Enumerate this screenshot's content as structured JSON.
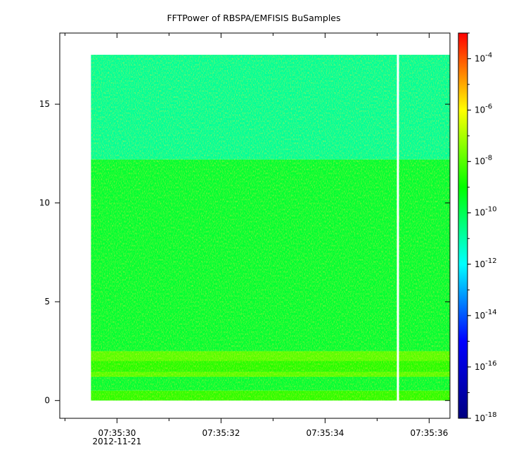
{
  "chart_data": {
    "type": "heatmap",
    "title": "FFTPower of RBSPA/EMFISIS  BuSamples",
    "xlabel": "",
    "ylabel": "",
    "x_start": "07:35:29.5",
    "x_end": "07:35:36.4",
    "xlim": [
      "07:35:28.9",
      "07:35:36.4"
    ],
    "x_ticks": [
      "07:35:30",
      "07:35:32",
      "07:35:34",
      "07:35:36"
    ],
    "x_minor_ticks": [
      "07:35:29",
      "07:35:31",
      "07:35:33",
      "07:35:35"
    ],
    "x_date_label": "2012-11-21",
    "ylim": [
      -0.9,
      18.6
    ],
    "y_ticks": [
      0,
      5,
      10,
      15
    ],
    "data_y_max": 17.5,
    "data_gap_time": "07:35:35.4",
    "colorbar": {
      "scale": "log",
      "range": [
        1e-18,
        0.001
      ],
      "tick_values": [
        1e-18,
        1e-16,
        1e-14,
        1e-12,
        1e-10,
        1e-08,
        1e-06,
        0.0001
      ],
      "tick_bases": [
        "10",
        "10",
        "10",
        "10",
        "10",
        "10",
        "10",
        "10"
      ],
      "tick_exponents": [
        "-18",
        "-16",
        "-14",
        "-12",
        "-10",
        "-8",
        "-6",
        "-4"
      ],
      "colormap": [
        "#000080",
        "#0000ff",
        "#00ffff",
        "#00ff00",
        "#ffff00",
        "#ff0000"
      ]
    },
    "bands": [
      {
        "y_range": [
          12.2,
          17.5
        ],
        "log10_power": -10.8
      },
      {
        "y_range": [
          2.5,
          12.2
        ],
        "log10_power": -9.6
      },
      {
        "y_range": [
          2.0,
          2.5
        ],
        "log10_power": -8.0
      },
      {
        "y_range": [
          1.45,
          2.0
        ],
        "log10_power": -8.6
      },
      {
        "y_range": [
          1.2,
          1.45
        ],
        "log10_power": -8.0
      },
      {
        "y_range": [
          0.5,
          1.2
        ],
        "log10_power": -9.6
      },
      {
        "y_range": [
          0.0,
          0.5
        ],
        "log10_power": -8.5
      }
    ]
  }
}
